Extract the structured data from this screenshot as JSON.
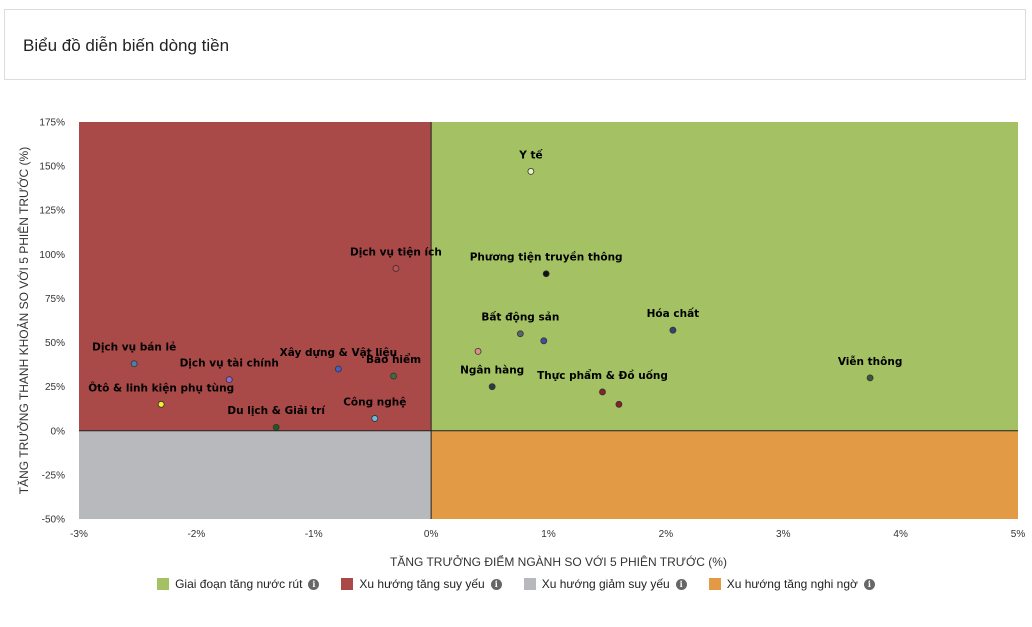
{
  "page": {
    "title": "Biểu đồ diễn biến dòng tiền"
  },
  "chart_data": {
    "type": "scatter",
    "xlabel": "TĂNG TRƯỞNG ĐIỂM NGÀNH SO VỚI 5 PHIÊN TRƯỚC (%)",
    "ylabel": "TĂNG TRƯỞNG THANH KHOẢN SO VỚI 5 PHIÊN TRƯỚC (%)",
    "xlim": [
      -3,
      5
    ],
    "ylim": [
      -50,
      175
    ],
    "x_ticks": [
      -3,
      -2,
      -1,
      0,
      1,
      2,
      3,
      4,
      5
    ],
    "x_tick_labels": [
      "-3%",
      "-2%",
      "-1%",
      "0%",
      "1%",
      "2%",
      "3%",
      "4%",
      "5%"
    ],
    "y_ticks": [
      -50,
      -25,
      0,
      25,
      50,
      75,
      100,
      125,
      150,
      175
    ],
    "y_tick_labels": [
      "-50%",
      "-25%",
      "0%",
      "25%",
      "50%",
      "75%",
      "100%",
      "125%",
      "150%",
      "175%"
    ],
    "quadrants": [
      {
        "name": "Giai đoạn tăng nước rút",
        "color": "#a4c263",
        "region": "top-right"
      },
      {
        "name": "Xu hướng tăng suy yếu",
        "color": "#a94948",
        "region": "top-left"
      },
      {
        "name": "Xu hướng giảm suy yếu",
        "color": "#b8b9bd",
        "region": "bottom-left"
      },
      {
        "name": "Xu hướng tăng nghi ngờ",
        "color": "#e39a45",
        "region": "bottom-right"
      }
    ],
    "points": [
      {
        "label": "Y tế",
        "x": 0.85,
        "y": 147,
        "color": "#e8f0c8"
      },
      {
        "label": "Dịch vụ tiện ích",
        "x": -0.3,
        "y": 92,
        "color": "#c0504d"
      },
      {
        "label": "Phương tiện truyền thông",
        "x": 0.98,
        "y": 89,
        "color": "#111111"
      },
      {
        "label": "Bất động sản",
        "x": 0.76,
        "y": 55,
        "color": "#5b6270"
      },
      {
        "label": "",
        "x": 0.96,
        "y": 51,
        "color": "#3c4fa0"
      },
      {
        "label": "Hóa chất",
        "x": 2.06,
        "y": 57,
        "color": "#2f4675"
      },
      {
        "label": "",
        "x": 0.4,
        "y": 45,
        "color": "#e58a8a"
      },
      {
        "label": "Dịch vụ bán lẻ",
        "x": -2.53,
        "y": 38,
        "color": "#4a7fb0"
      },
      {
        "label": "Dịch vụ tài chính",
        "x": -1.72,
        "y": 29,
        "color": "#8e6bd6"
      },
      {
        "label": "Xây dựng & Vật liệu",
        "x": -0.79,
        "y": 35,
        "color": "#4060c8"
      },
      {
        "label": "Bảo hiểm",
        "x": -0.32,
        "y": 31,
        "color": "#3a6e40"
      },
      {
        "label": "Ngân hàng",
        "x": 0.52,
        "y": 25,
        "color": "#2b3a44"
      },
      {
        "label": "Thực phẩm & Đồ uống",
        "x": 1.46,
        "y": 22,
        "color": "#8b1f2a"
      },
      {
        "label": "",
        "x": 1.6,
        "y": 15,
        "color": "#8b1f2a"
      },
      {
        "label": "Viễn thông",
        "x": 3.74,
        "y": 30,
        "color": "#3a5a3a"
      },
      {
        "label": "Ôtô & linh kiện phụ tùng",
        "x": -2.3,
        "y": 15,
        "color": "#f0f030"
      },
      {
        "label": "Công nghệ",
        "x": -0.48,
        "y": 7,
        "color": "#70b8e0"
      },
      {
        "label": "Du lịch & Giải trí",
        "x": -1.32,
        "y": 2,
        "color": "#1f5a1f"
      }
    ]
  },
  "legend": {
    "items": [
      {
        "label": "Giai đoạn tăng nước rút",
        "color": "#a4c263"
      },
      {
        "label": "Xu hướng tăng suy yếu",
        "color": "#a94948"
      },
      {
        "label": "Xu hướng giảm suy yếu",
        "color": "#b8b9bd"
      },
      {
        "label": "Xu hướng tăng nghi ngờ",
        "color": "#e39a45"
      }
    ],
    "info_glyph": "i"
  }
}
